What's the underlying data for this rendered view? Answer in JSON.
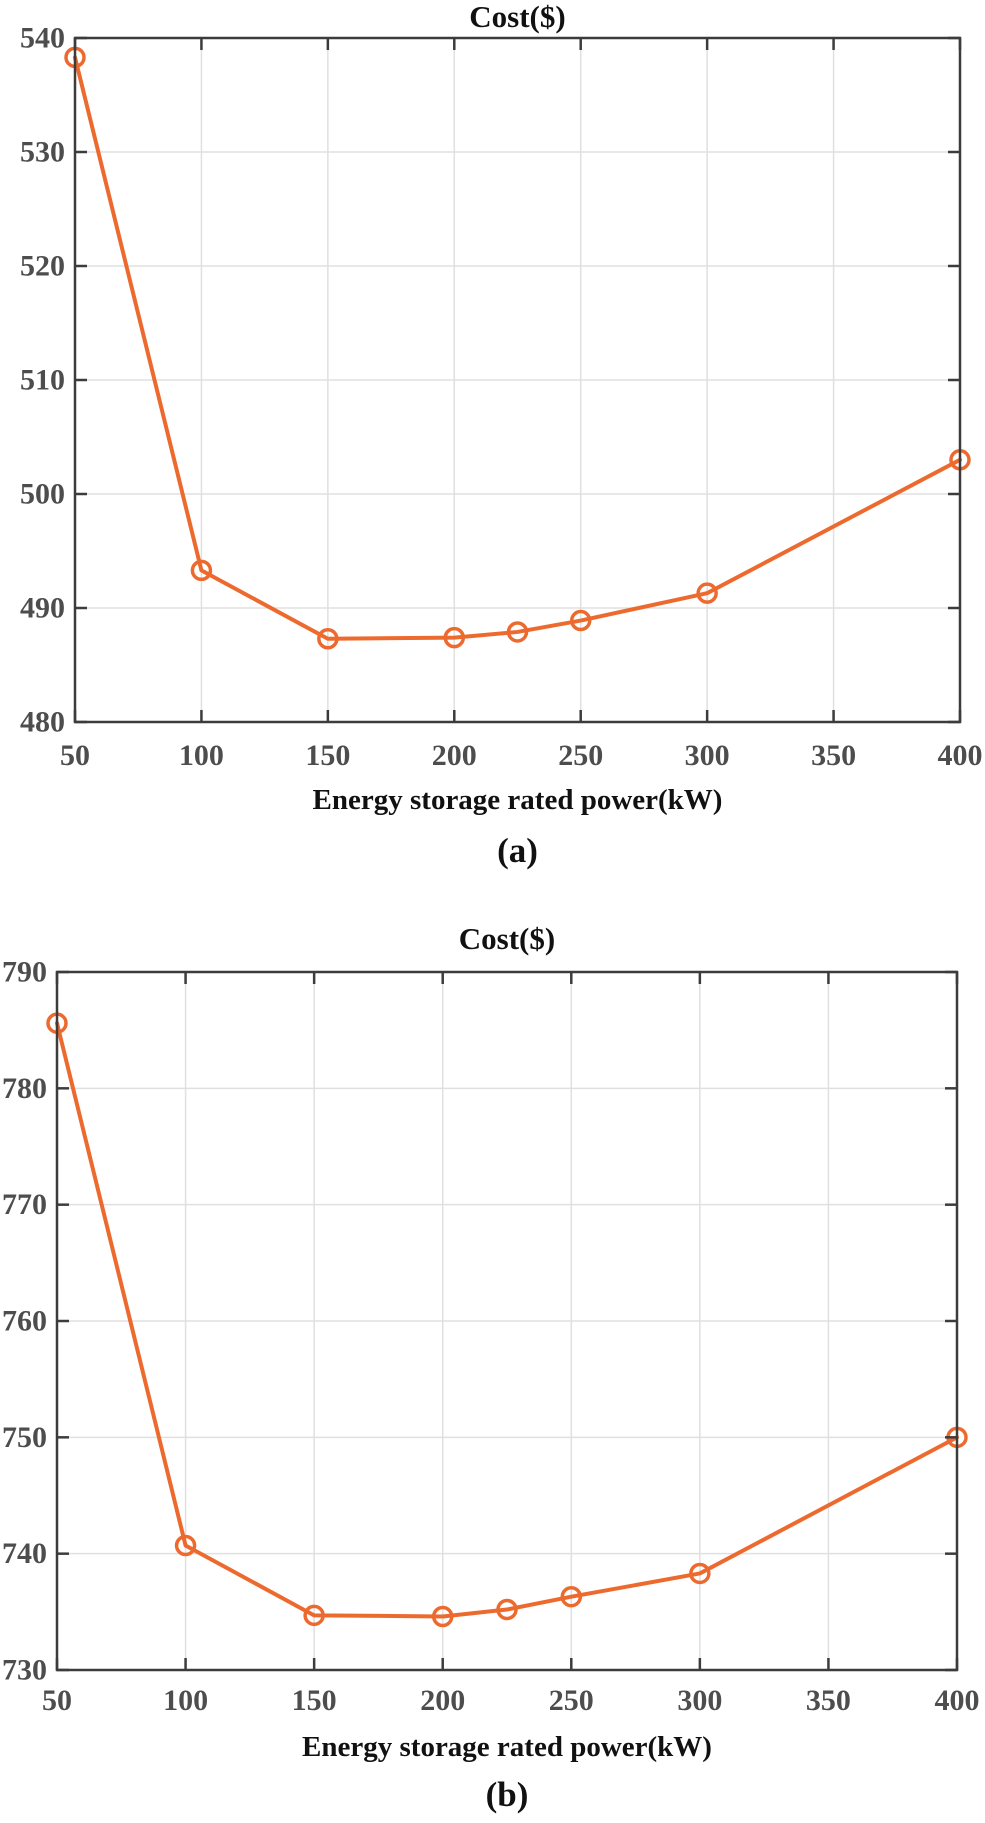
{
  "figure": {
    "background": "#ffffff"
  },
  "colors": {
    "line": "#ED6A2F",
    "axis": "#3C3C3C",
    "grid": "#E0E0E0",
    "tick_label": "#4D4D4D",
    "text": "#111111"
  },
  "chart_data": [
    {
      "type": "line",
      "panel_label": "(a)",
      "title": "Cost($)",
      "xlabel": "Energy storage rated power(kW)",
      "ylabel": "",
      "x": [
        50,
        100,
        150,
        200,
        225,
        250,
        300,
        400
      ],
      "y": [
        538.3,
        493.3,
        487.3,
        487.4,
        487.9,
        488.9,
        491.3,
        503.0
      ],
      "xlim": [
        50,
        400
      ],
      "ylim": [
        480,
        540
      ],
      "xticks": [
        50,
        100,
        150,
        200,
        250,
        300,
        350,
        400
      ],
      "yticks": [
        480,
        490,
        500,
        510,
        520,
        530,
        540
      ],
      "grid": true,
      "legend": "none",
      "line_color": "#ED6A2F",
      "marker": "open-circle"
    },
    {
      "type": "line",
      "panel_label": "(b)",
      "title": "Cost($)",
      "xlabel": "Energy storage rated power(kW)",
      "ylabel": "",
      "x": [
        50,
        100,
        150,
        200,
        225,
        250,
        300,
        400
      ],
      "y": [
        785.6,
        740.7,
        734.7,
        734.6,
        735.2,
        736.3,
        738.3,
        750.0
      ],
      "xlim": [
        50,
        400
      ],
      "ylim": [
        730,
        790
      ],
      "xticks": [
        50,
        100,
        150,
        200,
        250,
        300,
        350,
        400
      ],
      "yticks": [
        730,
        740,
        750,
        760,
        770,
        780,
        790
      ],
      "grid": true,
      "legend": "none",
      "line_color": "#ED6A2F",
      "marker": "open-circle"
    }
  ]
}
